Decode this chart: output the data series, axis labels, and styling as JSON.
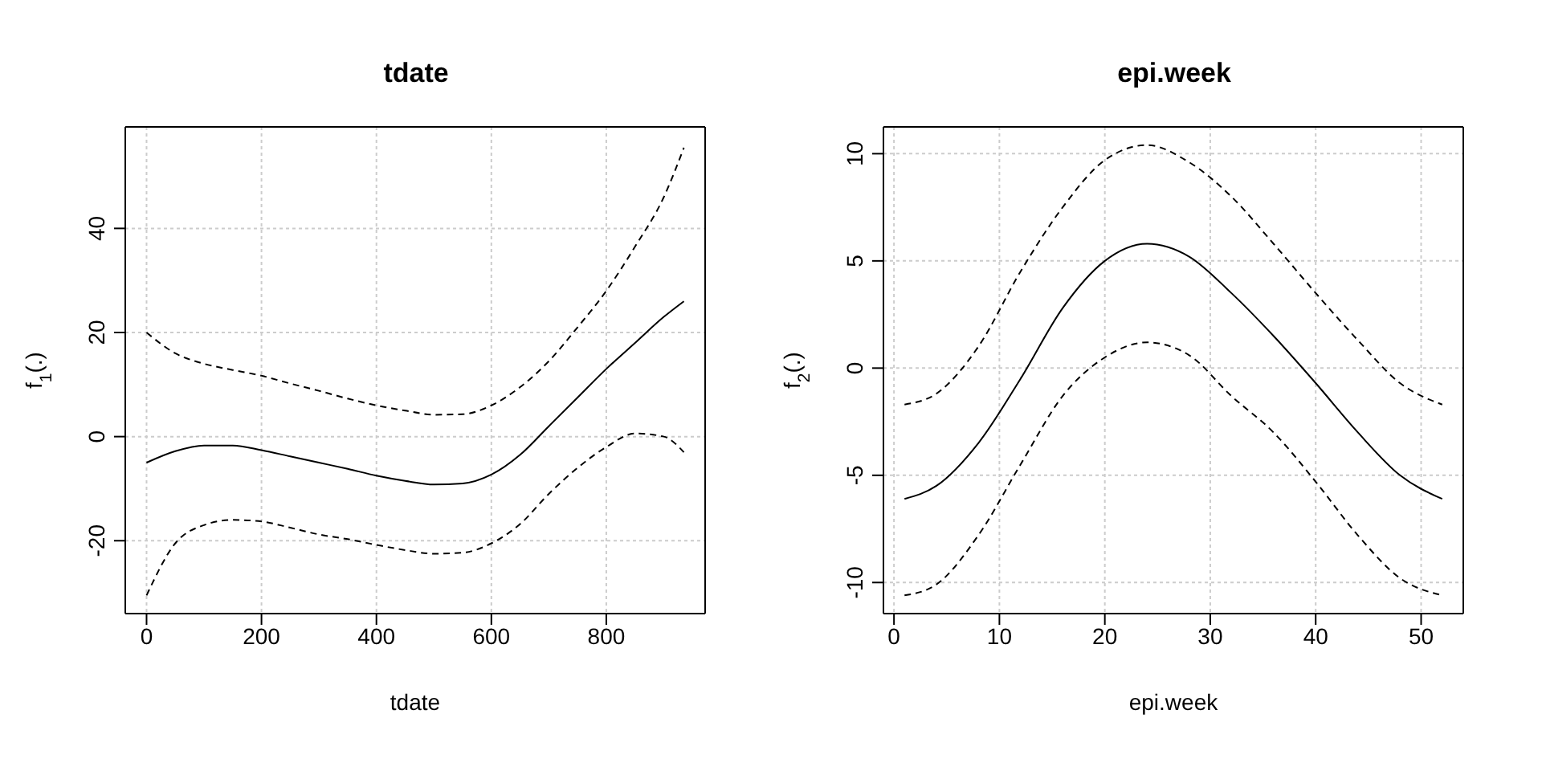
{
  "chart_data": [
    {
      "type": "line",
      "title": "tdate",
      "xlabel": "tdate",
      "ylabel": "f$_{1}$(.)",
      "x": [
        0,
        50,
        100,
        150,
        200,
        250,
        300,
        350,
        400,
        450,
        500,
        550,
        600,
        650,
        700,
        750,
        800,
        850,
        900,
        935
      ],
      "xlim": [
        -37,
        972
      ],
      "ylim": [
        -34,
        59.5
      ],
      "xticks": [
        0,
        200,
        400,
        600,
        800
      ],
      "yticks": [
        -20,
        0,
        20,
        40
      ],
      "grid": true,
      "series": [
        {
          "color": "#000000",
          "line_style": "solid",
          "values": [
            -5,
            -2.8,
            -1.7,
            -1.7,
            -2.6,
            -3.8,
            -5,
            -6.2,
            -7.5,
            -8.5,
            -9.2,
            -9,
            -7.3,
            -3.5,
            2,
            7.5,
            13,
            18,
            23,
            26
          ]
        },
        {
          "color": "#000000",
          "line_style": "dashed",
          "values": [
            20,
            16,
            14,
            12.8,
            11.7,
            10.2,
            8.8,
            7.3,
            6,
            5,
            4.2,
            4.3,
            6,
            9.5,
            14.5,
            21,
            28,
            36.5,
            46,
            55.5
          ]
        },
        {
          "color": "#000000",
          "line_style": "dashed",
          "values": [
            -30.5,
            -20.5,
            -17,
            -16,
            -16.3,
            -17.5,
            -18.8,
            -19.7,
            -20.8,
            -21.8,
            -22.5,
            -22.3,
            -20.5,
            -16.8,
            -11,
            -6,
            -2,
            0.6,
            0,
            -3
          ]
        }
      ]
    },
    {
      "type": "line",
      "title": "epi.week",
      "xlabel": "epi.week",
      "ylabel": "f$_{2}$(.)",
      "x": [
        1,
        4,
        8,
        12,
        16,
        20,
        24,
        28,
        32,
        36,
        40,
        44,
        48,
        52
      ],
      "xlim": [
        -1,
        54
      ],
      "ylim": [
        -11.45,
        11.25
      ],
      "xticks": [
        0,
        10,
        20,
        30,
        40,
        50
      ],
      "yticks": [
        -10,
        -5,
        0,
        5,
        10
      ],
      "grid": true,
      "series": [
        {
          "color": "#000000",
          "line_style": "solid",
          "values": [
            -6.1,
            -5.5,
            -3.5,
            -0.5,
            2.8,
            5,
            5.8,
            5.2,
            3.5,
            1.5,
            -0.7,
            -3,
            -5,
            -6.1
          ]
        },
        {
          "color": "#000000",
          "line_style": "dashed",
          "values": [
            -1.7,
            -1.2,
            1,
            4.5,
            7.5,
            9.7,
            10.4,
            9.6,
            8,
            5.8,
            3.5,
            1.3,
            -0.7,
            -1.7
          ]
        },
        {
          "color": "#000000",
          "line_style": "dashed",
          "values": [
            -10.6,
            -10.1,
            -7.8,
            -4.5,
            -1.3,
            0.5,
            1.2,
            0.6,
            -1.3,
            -3,
            -5.3,
            -7.8,
            -9.8,
            -10.6
          ]
        }
      ]
    }
  ]
}
